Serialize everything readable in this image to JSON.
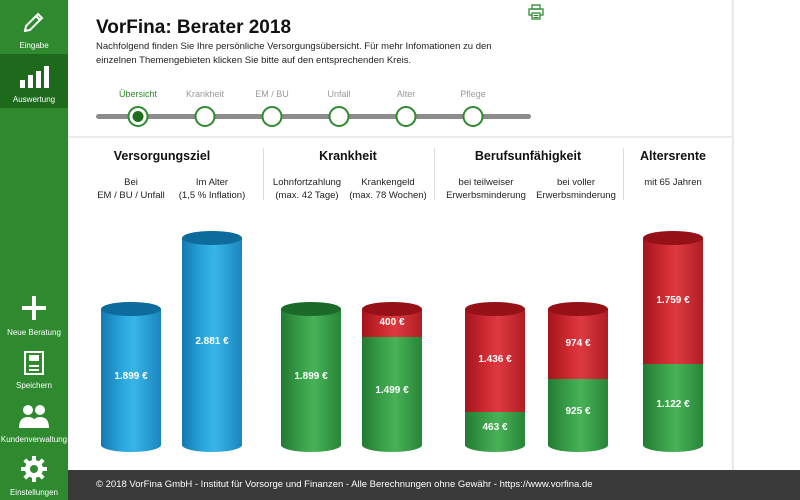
{
  "sidebar": {
    "items": [
      {
        "label": "Eingabe",
        "icon": "pencil-icon",
        "active": false
      },
      {
        "label": "Auswertung",
        "icon": "bar-chart-icon",
        "active": true
      },
      {
        "label": "Neue Beratung",
        "icon": "plus-icon",
        "active": false
      },
      {
        "label": "Speichern",
        "icon": "floppy-disk-icon",
        "active": false
      },
      {
        "label": "Kundenverwaltung",
        "icon": "users-icon",
        "active": false
      },
      {
        "label": "Einstellungen",
        "icon": "gear-icon",
        "active": false
      }
    ]
  },
  "header": {
    "title": "VorFina: Berater 2018",
    "intro": "Nachfolgend finden Sie Ihre persönliche Versorgungsübersicht. Für mehr Infomationen zu den einzelnen Themengebieten klicken Sie bitte auf den entsprechenden Kreis.",
    "print_icon": "printer-icon"
  },
  "stepper": {
    "steps": [
      {
        "label": "Übersicht",
        "active": true
      },
      {
        "label": "Krankheit",
        "active": false
      },
      {
        "label": "EM / BU",
        "active": false
      },
      {
        "label": "Unfall",
        "active": false
      },
      {
        "label": "Alter",
        "active": false
      },
      {
        "label": "Pflege",
        "active": false
      }
    ]
  },
  "sections": [
    {
      "title": "Versorgungsziel",
      "columns": [
        {
          "label": "Bei\nEM / BU / Unfall",
          "values": [
            {
              "text": "1.899 €",
              "amount": 1899,
              "color": "blue"
            }
          ]
        },
        {
          "label": "Im Alter\n(1,5 % Inflation)",
          "values": [
            {
              "text": "2.881 €",
              "amount": 2881,
              "color": "blue"
            }
          ]
        }
      ]
    },
    {
      "title": "Krankheit",
      "columns": [
        {
          "label": "Lohnfortzahlung\n(max. 42 Tage)",
          "values": [
            {
              "text": "1.899 €",
              "amount": 1899,
              "color": "green"
            }
          ]
        },
        {
          "label": "Krankengeld\n(max. 78 Wochen)",
          "values": [
            {
              "text": "1.499 €",
              "amount": 1499,
              "color": "green"
            },
            {
              "text": "400 €",
              "amount": 400,
              "color": "red"
            }
          ]
        }
      ]
    },
    {
      "title": "Berufsunfähigkeit",
      "columns": [
        {
          "label": "bei teilweiser\nErwerbsminderung",
          "values": [
            {
              "text": "463 €",
              "amount": 463,
              "color": "green"
            },
            {
              "text": "1.436 €",
              "amount": 1436,
              "color": "red"
            }
          ]
        },
        {
          "label": "bei voller\nErwerbsminderung",
          "values": [
            {
              "text": "925 €",
              "amount": 925,
              "color": "green"
            },
            {
              "text": "974 €",
              "amount": 974,
              "color": "red"
            }
          ]
        }
      ]
    },
    {
      "title": "Altersrente",
      "columns": [
        {
          "label": "mit 65 Jahren",
          "values": [
            {
              "text": "1.122 €",
              "amount": 1122,
              "color": "green"
            },
            {
              "text": "1.759 €",
              "amount": 1759,
              "color": "red"
            }
          ]
        }
      ]
    }
  ],
  "colors": {
    "brand_green": "#2f8a2f",
    "gap_red": "#cf2a31",
    "target_blue": "#2aa7dd"
  },
  "footer": {
    "text": "© 2018 VorFina GmbH - Institut für Vorsorge und Finanzen - Alle Berechnungen ohne Gewähr - https://www.vorfina.de"
  }
}
